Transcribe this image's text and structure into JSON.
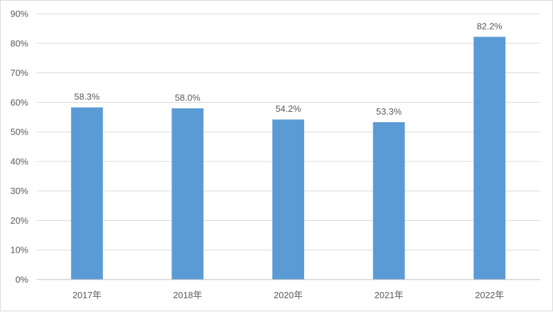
{
  "chart_data": {
    "type": "bar",
    "categories": [
      "2017年",
      "2018年",
      "2020年",
      "2021年",
      "2022年"
    ],
    "values": [
      58.3,
      58.0,
      54.2,
      53.3,
      82.2
    ],
    "data_labels": [
      "58.3%",
      "58.0%",
      "54.2%",
      "53.3%",
      "82.2%"
    ],
    "title": "",
    "xlabel": "",
    "ylabel": "",
    "ylim": [
      0,
      90
    ],
    "yticks": [
      0,
      10,
      20,
      30,
      40,
      50,
      60,
      70,
      80,
      90
    ],
    "ytick_labels": [
      "0%",
      "10%",
      "20%",
      "30%",
      "40%",
      "50%",
      "60%",
      "70%",
      "80%",
      "90%"
    ],
    "grid": true,
    "legend": "none",
    "bar_color": "#5b9bd5"
  }
}
